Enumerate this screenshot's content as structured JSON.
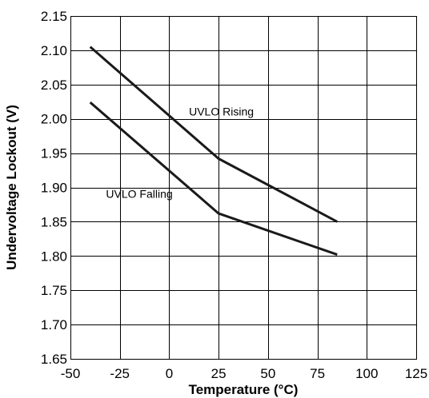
{
  "chart_data": {
    "type": "line",
    "xlabel": "Temperature (°C)",
    "ylabel": "Undervoltage Lockout (V)",
    "xlim": [
      -50,
      125
    ],
    "ylim": [
      1.65,
      2.15
    ],
    "x_ticks": [
      "-50",
      "-25",
      "0",
      "25",
      "50",
      "75",
      "100",
      "125"
    ],
    "y_ticks": [
      "1.65",
      "1.70",
      "1.75",
      "1.80",
      "1.85",
      "1.90",
      "1.95",
      "2.00",
      "2.05",
      "2.10",
      "2.15"
    ],
    "grid": true,
    "series": [
      {
        "name": "UVLO Rising",
        "x": [
          -40,
          25,
          85
        ],
        "y": [
          2.105,
          1.942,
          1.85
        ]
      },
      {
        "name": "UVLO Falling",
        "x": [
          -40,
          25,
          85
        ],
        "y": [
          2.024,
          1.862,
          1.802
        ]
      }
    ],
    "annotations": [
      {
        "text": "UVLO Rising",
        "x": 10,
        "y": 2.005
      },
      {
        "text": "UVLO Falling",
        "x": -32,
        "y": 1.885
      }
    ],
    "colors": {
      "series": "#1a1a1a",
      "grid": "#000000",
      "background": "#ffffff"
    }
  }
}
